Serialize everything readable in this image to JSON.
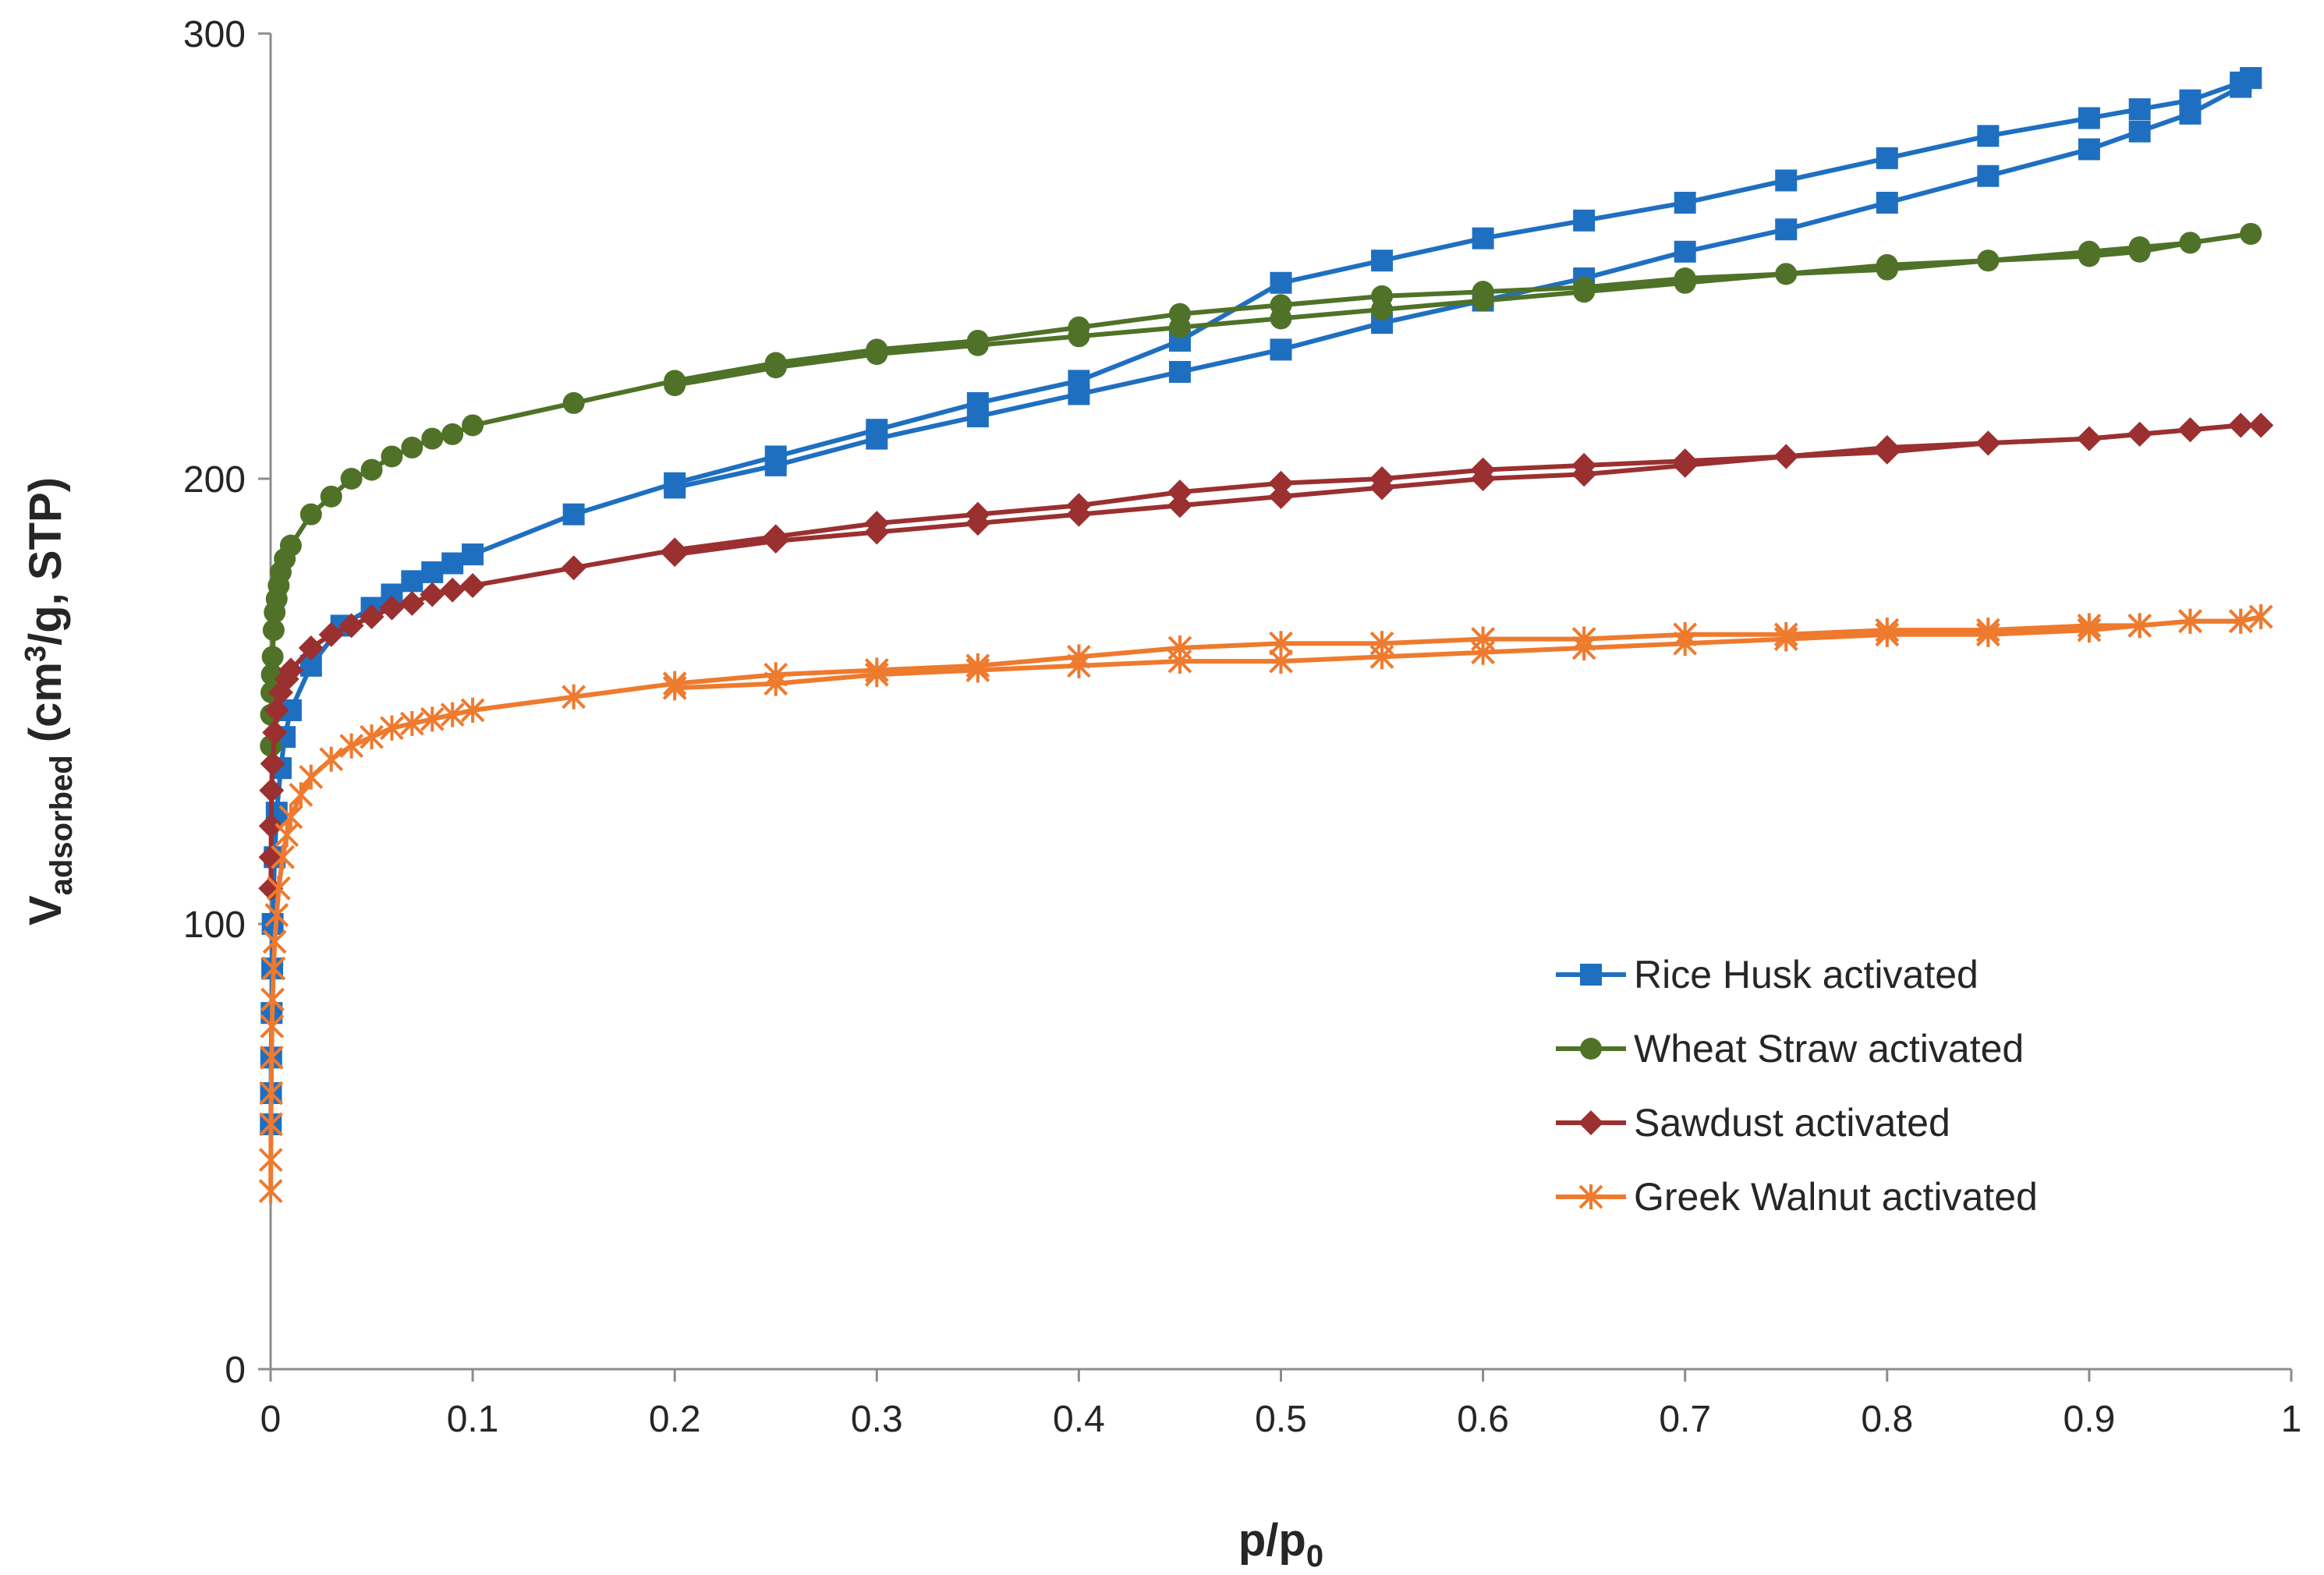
{
  "chart_data": {
    "type": "line",
    "xlabel": {
      "main": "p/p",
      "sub": "0"
    },
    "ylabel": {
      "main": "V",
      "sub": "adsorbed",
      "rest": " (cm",
      "sup": "3",
      "tail": "/g, STP)"
    },
    "xlim": [
      0,
      1
    ],
    "ylim": [
      0,
      300
    ],
    "x_ticks": [
      0,
      0.1,
      0.2,
      0.3,
      0.4,
      0.5,
      0.6,
      0.7,
      0.8,
      0.9,
      1
    ],
    "x_tick_labels": [
      "0",
      "0.1",
      "0.2",
      "0.3",
      "0.4",
      "0.5",
      "0.6",
      "0.7",
      "0.8",
      "0.9",
      "1"
    ],
    "y_ticks": [
      0,
      100,
      200,
      300
    ],
    "y_tick_labels": [
      "0",
      "100",
      "200",
      "300"
    ],
    "grid": false,
    "legend_position": "center-right",
    "series": [
      {
        "name": "Rice Husk activated",
        "color": "#1F6FC1",
        "marker": "square",
        "adsorption": [
          [
            0.0001,
            55
          ],
          [
            0.0002,
            62
          ],
          [
            0.0003,
            70
          ],
          [
            0.0005,
            80
          ],
          [
            0.0008,
            90
          ],
          [
            0.001,
            100
          ],
          [
            0.002,
            115
          ],
          [
            0.003,
            125
          ],
          [
            0.005,
            135
          ],
          [
            0.007,
            142
          ],
          [
            0.01,
            148
          ],
          [
            0.02,
            158
          ],
          [
            0.035,
            167
          ],
          [
            0.05,
            171
          ],
          [
            0.06,
            174
          ],
          [
            0.07,
            177
          ],
          [
            0.08,
            179
          ],
          [
            0.09,
            181
          ],
          [
            0.1,
            183
          ],
          [
            0.15,
            192
          ],
          [
            0.2,
            199
          ],
          [
            0.25,
            205
          ],
          [
            0.3,
            211
          ],
          [
            0.35,
            217
          ],
          [
            0.4,
            222
          ],
          [
            0.45,
            231
          ],
          [
            0.5,
            244
          ],
          [
            0.55,
            249
          ],
          [
            0.6,
            254
          ],
          [
            0.65,
            258
          ],
          [
            0.7,
            262
          ],
          [
            0.75,
            267
          ],
          [
            0.8,
            272
          ],
          [
            0.85,
            277
          ],
          [
            0.9,
            281
          ],
          [
            0.925,
            283
          ],
          [
            0.95,
            285
          ],
          [
            0.975,
            289
          ],
          [
            0.98,
            290
          ]
        ],
        "desorption": [
          [
            0.98,
            290
          ],
          [
            0.975,
            288
          ],
          [
            0.95,
            282
          ],
          [
            0.925,
            278
          ],
          [
            0.9,
            274
          ],
          [
            0.85,
            268
          ],
          [
            0.8,
            262
          ],
          [
            0.75,
            256
          ],
          [
            0.7,
            251
          ],
          [
            0.65,
            245
          ],
          [
            0.6,
            240
          ],
          [
            0.55,
            235
          ],
          [
            0.5,
            229
          ],
          [
            0.45,
            224
          ],
          [
            0.4,
            219
          ],
          [
            0.35,
            214
          ],
          [
            0.3,
            209
          ],
          [
            0.25,
            203
          ],
          [
            0.2,
            198
          ]
        ]
      },
      {
        "name": "Wheat Straw activated",
        "color": "#4F7228",
        "marker": "circle",
        "adsorption": [
          [
            0.0001,
            140
          ],
          [
            0.0002,
            147
          ],
          [
            0.0004,
            152
          ],
          [
            0.0006,
            156
          ],
          [
            0.001,
            160
          ],
          [
            0.0015,
            166
          ],
          [
            0.002,
            170
          ],
          [
            0.003,
            173
          ],
          [
            0.004,
            176
          ],
          [
            0.005,
            179
          ],
          [
            0.007,
            182
          ],
          [
            0.01,
            185
          ],
          [
            0.02,
            192
          ],
          [
            0.03,
            196
          ],
          [
            0.04,
            200
          ],
          [
            0.05,
            202
          ],
          [
            0.06,
            205
          ],
          [
            0.07,
            207
          ],
          [
            0.08,
            209
          ],
          [
            0.09,
            210
          ],
          [
            0.1,
            212
          ],
          [
            0.15,
            217
          ],
          [
            0.2,
            222
          ],
          [
            0.25,
            226
          ],
          [
            0.3,
            229
          ],
          [
            0.35,
            231
          ],
          [
            0.4,
            234
          ],
          [
            0.45,
            237
          ],
          [
            0.5,
            239
          ],
          [
            0.55,
            241
          ],
          [
            0.6,
            242
          ],
          [
            0.65,
            243
          ],
          [
            0.7,
            245
          ],
          [
            0.75,
            246
          ],
          [
            0.8,
            247
          ],
          [
            0.85,
            249
          ],
          [
            0.9,
            250
          ],
          [
            0.925,
            251
          ],
          [
            0.95,
            253
          ],
          [
            0.98,
            255
          ]
        ],
        "desorption": [
          [
            0.98,
            255
          ],
          [
            0.95,
            253
          ],
          [
            0.925,
            252
          ],
          [
            0.9,
            251
          ],
          [
            0.85,
            249
          ],
          [
            0.8,
            248
          ],
          [
            0.75,
            246
          ],
          [
            0.7,
            244
          ],
          [
            0.65,
            242
          ],
          [
            0.6,
            240
          ],
          [
            0.55,
            238
          ],
          [
            0.5,
            236
          ],
          [
            0.45,
            234
          ],
          [
            0.4,
            232
          ],
          [
            0.35,
            230
          ],
          [
            0.3,
            228
          ],
          [
            0.25,
            225
          ],
          [
            0.2,
            221
          ]
        ]
      },
      {
        "name": "Sawdust activated",
        "color": "#9B3030",
        "marker": "diamond",
        "adsorption": [
          [
            0.0001,
            108
          ],
          [
            0.0002,
            115
          ],
          [
            0.0003,
            122
          ],
          [
            0.0005,
            130
          ],
          [
            0.001,
            136
          ],
          [
            0.002,
            143
          ],
          [
            0.003,
            148
          ],
          [
            0.005,
            152
          ],
          [
            0.008,
            155
          ],
          [
            0.01,
            157
          ],
          [
            0.02,
            162
          ],
          [
            0.03,
            165
          ],
          [
            0.04,
            167
          ],
          [
            0.05,
            169
          ],
          [
            0.06,
            171
          ],
          [
            0.07,
            172
          ],
          [
            0.08,
            174
          ],
          [
            0.09,
            175
          ],
          [
            0.1,
            176
          ],
          [
            0.15,
            180
          ],
          [
            0.2,
            184
          ],
          [
            0.25,
            187
          ],
          [
            0.3,
            190
          ],
          [
            0.35,
            192
          ],
          [
            0.4,
            194
          ],
          [
            0.45,
            197
          ],
          [
            0.5,
            199
          ],
          [
            0.55,
            200
          ],
          [
            0.6,
            202
          ],
          [
            0.65,
            203
          ],
          [
            0.7,
            204
          ],
          [
            0.75,
            205
          ],
          [
            0.8,
            207
          ],
          [
            0.85,
            208
          ],
          [
            0.9,
            209
          ],
          [
            0.925,
            210
          ],
          [
            0.95,
            211
          ],
          [
            0.975,
            212
          ],
          [
            0.985,
            212
          ]
        ],
        "desorption": [
          [
            0.985,
            212
          ],
          [
            0.975,
            212
          ],
          [
            0.95,
            211
          ],
          [
            0.925,
            210
          ],
          [
            0.9,
            209
          ],
          [
            0.85,
            208
          ],
          [
            0.8,
            206
          ],
          [
            0.75,
            205
          ],
          [
            0.7,
            203
          ],
          [
            0.65,
            201
          ],
          [
            0.6,
            200
          ],
          [
            0.55,
            198
          ],
          [
            0.5,
            196
          ],
          [
            0.45,
            194
          ],
          [
            0.4,
            192
          ],
          [
            0.35,
            190
          ],
          [
            0.3,
            188
          ],
          [
            0.25,
            186
          ],
          [
            0.2,
            183
          ]
        ]
      },
      {
        "name": "Greek Walnut activated",
        "color": "#EE7A2E",
        "marker": "asterisk",
        "adsorption": [
          [
            5e-05,
            40
          ],
          [
            0.0001,
            47
          ],
          [
            0.0002,
            55
          ],
          [
            0.0003,
            62
          ],
          [
            0.0005,
            70
          ],
          [
            0.0007,
            77
          ],
          [
            0.001,
            83
          ],
          [
            0.0015,
            90
          ],
          [
            0.002,
            96
          ],
          [
            0.003,
            102
          ],
          [
            0.004,
            108
          ],
          [
            0.006,
            115
          ],
          [
            0.008,
            120
          ],
          [
            0.01,
            124
          ],
          [
            0.015,
            129
          ],
          [
            0.02,
            133
          ],
          [
            0.03,
            137
          ],
          [
            0.04,
            140
          ],
          [
            0.05,
            142
          ],
          [
            0.06,
            144
          ],
          [
            0.07,
            145
          ],
          [
            0.08,
            146
          ],
          [
            0.09,
            147
          ],
          [
            0.1,
            148
          ],
          [
            0.15,
            151
          ],
          [
            0.2,
            154
          ],
          [
            0.25,
            156
          ],
          [
            0.3,
            157
          ],
          [
            0.35,
            158
          ],
          [
            0.4,
            160
          ],
          [
            0.45,
            162
          ],
          [
            0.5,
            163
          ],
          [
            0.55,
            163
          ],
          [
            0.6,
            164
          ],
          [
            0.65,
            164
          ],
          [
            0.7,
            165
          ],
          [
            0.75,
            165
          ],
          [
            0.8,
            166
          ],
          [
            0.85,
            166
          ],
          [
            0.9,
            167
          ],
          [
            0.925,
            167
          ],
          [
            0.95,
            168
          ],
          [
            0.975,
            168
          ],
          [
            0.985,
            169
          ]
        ],
        "desorption": [
          [
            0.985,
            169
          ],
          [
            0.975,
            168
          ],
          [
            0.95,
            168
          ],
          [
            0.925,
            167
          ],
          [
            0.9,
            166
          ],
          [
            0.85,
            165
          ],
          [
            0.8,
            165
          ],
          [
            0.75,
            164
          ],
          [
            0.7,
            163
          ],
          [
            0.65,
            162
          ],
          [
            0.6,
            161
          ],
          [
            0.55,
            160
          ],
          [
            0.5,
            159
          ],
          [
            0.45,
            159
          ],
          [
            0.4,
            158
          ],
          [
            0.35,
            157
          ],
          [
            0.3,
            156
          ],
          [
            0.25,
            154
          ],
          [
            0.2,
            153
          ]
        ]
      }
    ]
  }
}
